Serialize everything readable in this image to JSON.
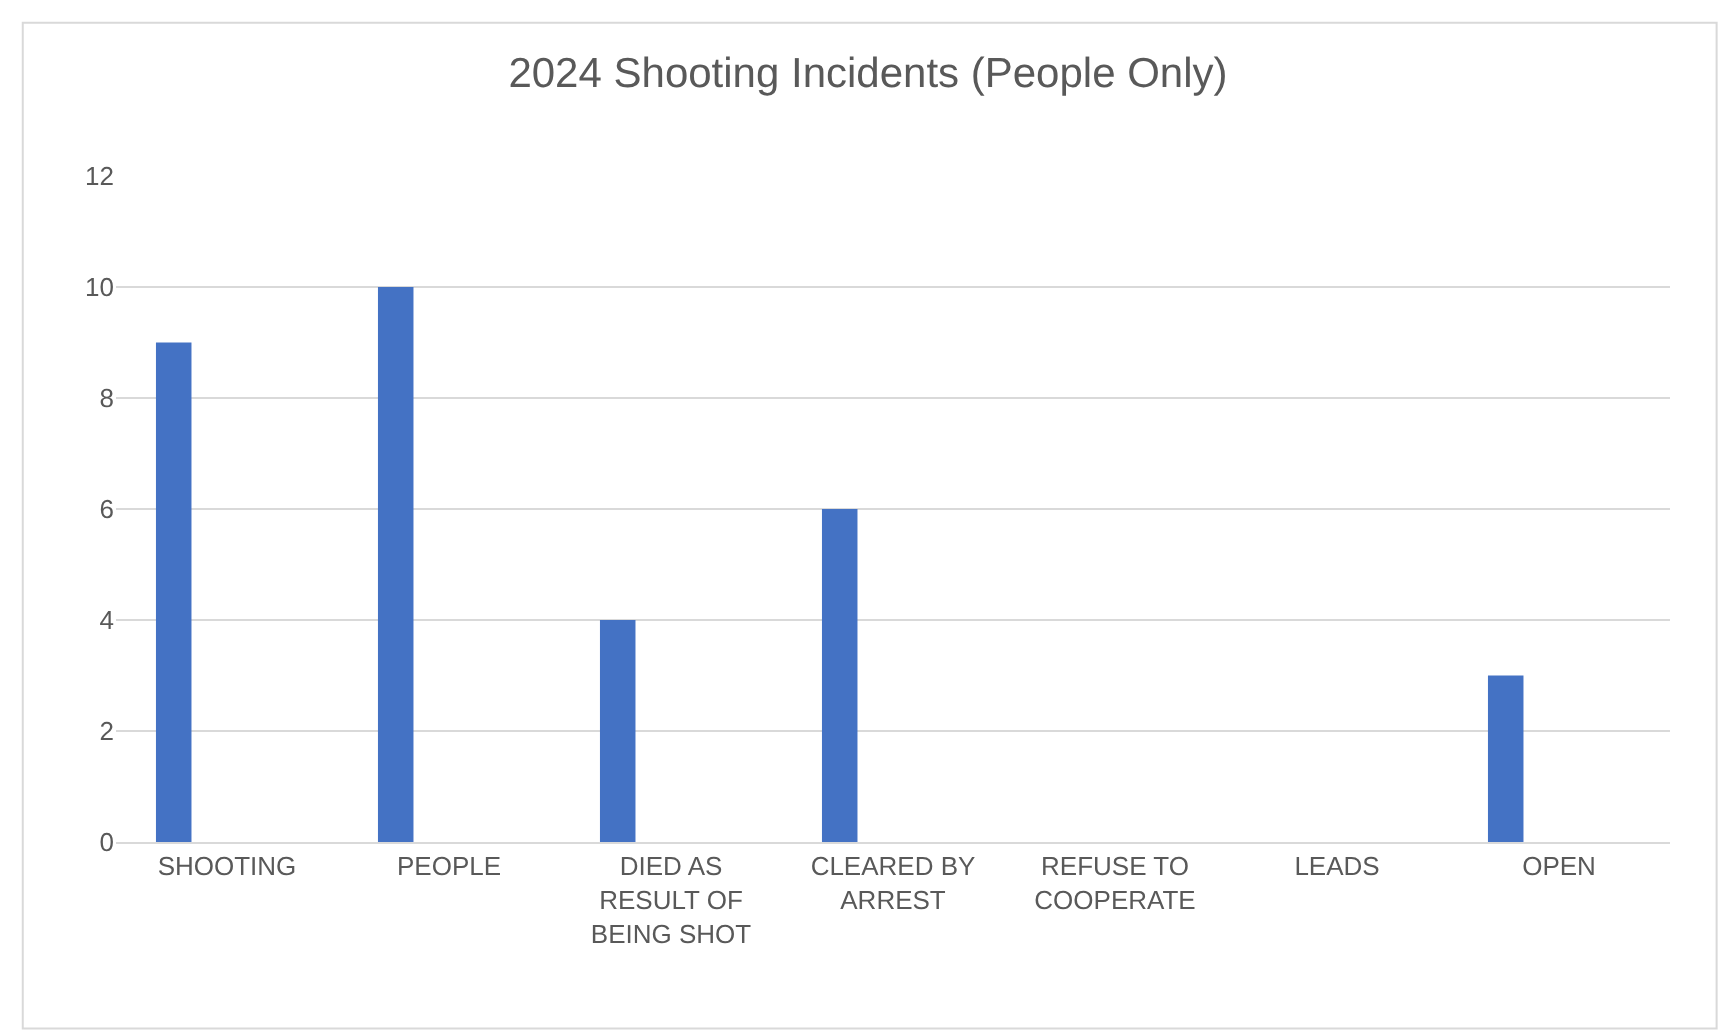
{
  "chart_data": {
    "type": "bar",
    "title": "2024 Shooting Incidents (People Only)",
    "categories": [
      "SHOOTING",
      "PEOPLE",
      "DIED AS RESULT OF BEING SHOT",
      "CLEARED BY ARREST",
      "REFUSE TO COOPERATE",
      "LEADS",
      "OPEN"
    ],
    "values": [
      9,
      10,
      4,
      6,
      0,
      0,
      3
    ],
    "color": "#4472c4",
    "ylim": [
      0,
      12
    ],
    "yticks": [
      0,
      2,
      4,
      6,
      8,
      10,
      12
    ],
    "grid": "y"
  }
}
